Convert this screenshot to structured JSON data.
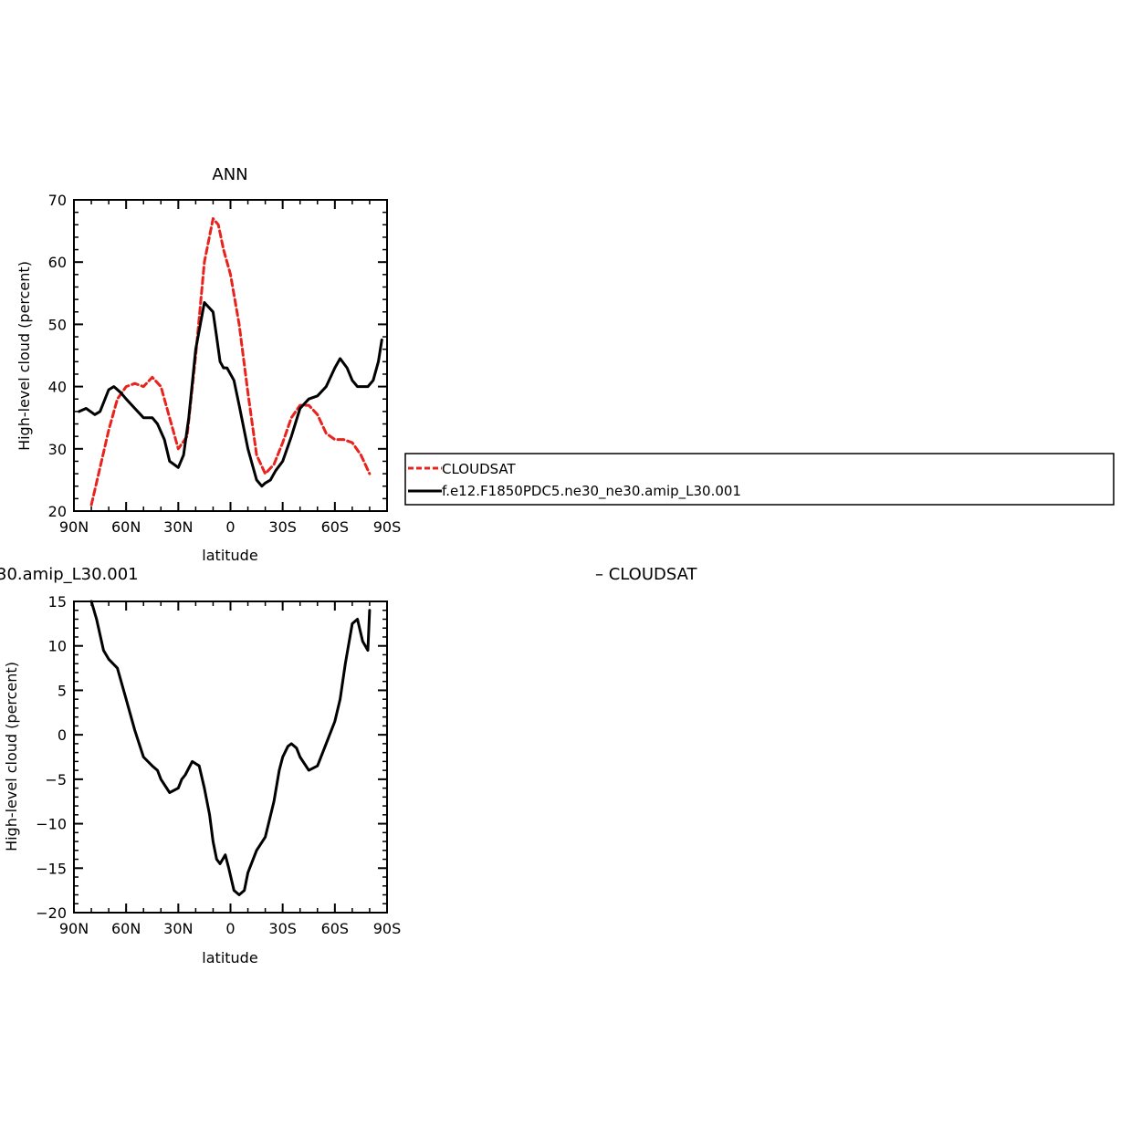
{
  "chart_data": [
    {
      "type": "line",
      "title": "ANN",
      "xlabel": "latitude",
      "ylabel": "High-level cloud (percent)",
      "xlim": [
        90,
        -90
      ],
      "ylim": [
        20,
        70
      ],
      "xticks": [
        90,
        60,
        30,
        0,
        -30,
        -60,
        -90
      ],
      "xtick_labels": [
        "90N",
        "60N",
        "30N",
        "0",
        "30S",
        "60S",
        "90S"
      ],
      "yticks": [
        20,
        30,
        40,
        50,
        60,
        70
      ],
      "ytick_labels": [
        "20",
        "30",
        "40",
        "50",
        "60",
        "70"
      ],
      "grid": false,
      "legend_position": "right",
      "series": [
        {
          "name": "CLOUDSAT",
          "color": "#e8221c",
          "dash": "dashed",
          "x": [
            80,
            75,
            70,
            65,
            60,
            55,
            50,
            45,
            40,
            35,
            30,
            25,
            20,
            15,
            10,
            7,
            4,
            0,
            -5,
            -10,
            -15,
            -20,
            -25,
            -30,
            -35,
            -40,
            -45,
            -50,
            -55,
            -60,
            -65,
            -70,
            -75,
            -80
          ],
          "y": [
            21,
            27,
            33,
            38,
            40,
            40.5,
            40,
            41.5,
            40,
            35,
            30,
            32,
            45,
            60,
            67,
            66,
            62,
            58,
            50,
            39,
            29,
            26,
            27.5,
            31,
            35,
            37,
            37,
            35.5,
            32.5,
            31.5,
            31.5,
            31,
            29,
            26
          ]
        },
        {
          "name": "f.e12.F1850PDC5.ne30_ne30.amip_L30.001",
          "color": "#000000",
          "dash": "solid",
          "x": [
            87,
            83,
            78,
            75,
            70,
            67,
            63,
            60,
            55,
            50,
            45,
            42,
            38,
            35,
            30,
            27,
            24,
            20,
            15,
            10,
            8,
            6,
            4,
            2,
            -2,
            -5,
            -10,
            -15,
            -18,
            -20,
            -23,
            -26,
            -30,
            -35,
            -40,
            -45,
            -50,
            -55,
            -60,
            -63,
            -67,
            -70,
            -73,
            -76,
            -79,
            -82,
            -85,
            -87
          ],
          "y": [
            36,
            36.5,
            35.5,
            36,
            39.5,
            40,
            39,
            38,
            36.5,
            35,
            35,
            34,
            31.5,
            28,
            27,
            29,
            35,
            46,
            53.5,
            52,
            48,
            44,
            43,
            43,
            41,
            37,
            30,
            25,
            24,
            24.5,
            25,
            26.5,
            28,
            32,
            36.5,
            38,
            38.5,
            40,
            43,
            44.5,
            43,
            41,
            40,
            40,
            40,
            41,
            44,
            47.5
          ]
        }
      ],
      "legend": {
        "entries": [
          "CLOUDSAT",
          "f.e12.F1850PDC5.ne30_ne30.amip_L30.001"
        ]
      }
    },
    {
      "type": "line",
      "title": "30.amip_L30.001",
      "title_right": "– CLOUDSAT",
      "xlabel": "latitude",
      "ylabel": "High-level cloud (percent)",
      "xlim": [
        90,
        -90
      ],
      "ylim": [
        -20,
        15
      ],
      "xticks": [
        90,
        60,
        30,
        0,
        -30,
        -60,
        -90
      ],
      "xtick_labels": [
        "90N",
        "60N",
        "30N",
        "0",
        "30S",
        "60S",
        "90S"
      ],
      "yticks": [
        -20,
        -15,
        -10,
        -5,
        0,
        5,
        10,
        15
      ],
      "ytick_labels": [
        "−20",
        "−15",
        "−10",
        "−5",
        "0",
        "5",
        "10",
        "15"
      ],
      "grid": false,
      "series": [
        {
          "color": "#000000",
          "dash": "solid",
          "x": [
            80,
            77,
            73,
            70,
            65,
            60,
            55,
            50,
            45,
            42,
            40,
            35,
            30,
            28,
            26,
            22,
            18,
            15,
            12,
            10,
            8,
            6,
            3,
            1,
            -2,
            -5,
            -8,
            -10,
            -15,
            -20,
            -25,
            -28,
            -30,
            -33,
            -35,
            -38,
            -40,
            -45,
            -50,
            -55,
            -60,
            -63,
            -66,
            -70,
            -73,
            -76,
            -79,
            -80
          ],
          "y": [
            15,
            13,
            9.5,
            8.5,
            7.5,
            4,
            0.5,
            -2.5,
            -3.5,
            -4,
            -5,
            -6.5,
            -6,
            -5,
            -4.5,
            -3,
            -3.5,
            -6,
            -9,
            -12,
            -14,
            -14.5,
            -13.5,
            -15,
            -17.5,
            -18,
            -17.5,
            -15.5,
            -13,
            -11.5,
            -7.5,
            -4,
            -2.5,
            -1.3,
            -1,
            -1.5,
            -2.5,
            -4,
            -3.5,
            -1,
            1.5,
            4,
            8,
            12.5,
            13,
            10.5,
            9.5,
            14
          ]
        }
      ]
    }
  ]
}
